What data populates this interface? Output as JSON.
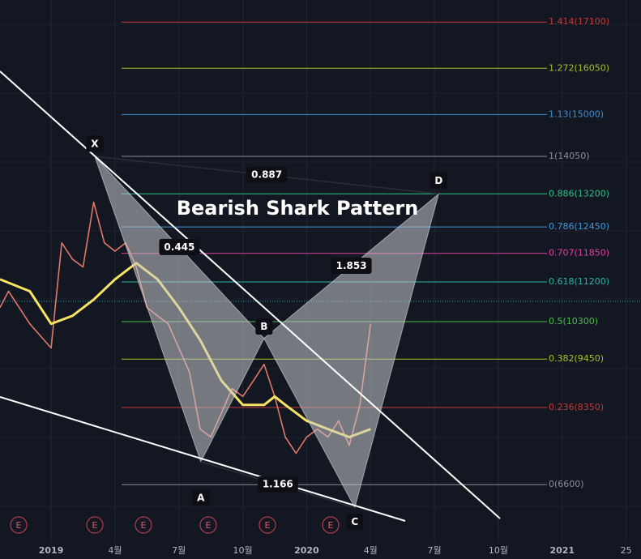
{
  "chart_data": {
    "type": "harmonic",
    "title": "Bearish Shark Pattern",
    "xlim": [
      -2.4,
      27.7
    ],
    "ylim": [
      5280,
      17600
    ],
    "xticks": [
      {
        "value": 0,
        "label": "2019"
      },
      {
        "value": 3,
        "label": "4월"
      },
      {
        "value": 6,
        "label": "7월"
      },
      {
        "value": 9,
        "label": "10월"
      },
      {
        "value": 12,
        "label": "2020"
      },
      {
        "value": 15,
        "label": "4월"
      },
      {
        "value": 18,
        "label": "7월"
      },
      {
        "value": 21,
        "label": "10월"
      },
      {
        "value": 24,
        "label": "2021"
      },
      {
        "value": 27,
        "label": "25"
      }
    ],
    "fib_levels": [
      {
        "label": "1.414(17100)",
        "value": 17100,
        "color": "#c23b3b"
      },
      {
        "label": "1.272(16050)",
        "value": 16050,
        "color": "#a3c12e"
      },
      {
        "label": "1.13(15000)",
        "value": 15000,
        "color": "#3b8fd6"
      },
      {
        "label": "1(14050)",
        "value": 14050,
        "color": "#8a8d96"
      },
      {
        "label": "0.886(13200)",
        "value": 13200,
        "color": "#2fbf86"
      },
      {
        "label": "0.786(12450)",
        "value": 12450,
        "color": "#3d9ad8"
      },
      {
        "label": "0.707(11850)",
        "value": 11850,
        "color": "#d9439f"
      },
      {
        "label": "0.618(11200)",
        "value": 11200,
        "color": "#2bb3a3"
      },
      {
        "label": "0.5(10300)",
        "value": 10300,
        "color": "#4cbb50"
      },
      {
        "label": "0.382(9450)",
        "value": 9450,
        "color": "#a3c12e"
      },
      {
        "label": "0.236(8350)",
        "value": 8350,
        "color": "#c23b3b"
      },
      {
        "label": "0(6600)",
        "value": 6600,
        "color": "#8a8d96"
      }
    ],
    "points": [
      {
        "name": "X",
        "x": 2.05,
        "value": 14050
      },
      {
        "name": "A",
        "x": 7.03,
        "value": 7120
      },
      {
        "name": "B",
        "x": 10.0,
        "value": 9920
      },
      {
        "name": "C",
        "x": 14.26,
        "value": 6080
      },
      {
        "name": "D",
        "x": 18.2,
        "value": 13200
      }
    ],
    "ratios": {
      "XD": "0.887",
      "XB": "0.445",
      "BD": "1.853",
      "AC": "1.166"
    },
    "last_price": 10760,
    "price": {
      "color": "#e0786a",
      "x": [
        -2.4,
        -2,
        -1,
        0,
        0.5,
        1,
        1.5,
        2,
        2.5,
        3,
        3.5,
        4,
        4.5,
        5,
        5.5,
        6,
        6.5,
        7,
        7.5,
        8,
        8.5,
        9,
        9.5,
        10,
        10.5,
        11,
        11.5,
        12,
        12.5,
        13,
        13.5,
        14,
        14.5,
        14.8,
        15
      ],
      "values": [
        10620,
        10990,
        10250,
        9700,
        12090,
        11720,
        11540,
        13010,
        12090,
        11900,
        12090,
        11540,
        10620,
        10430,
        10250,
        9700,
        9150,
        7860,
        7680,
        8230,
        8780,
        8600,
        8960,
        9330,
        8600,
        7680,
        7310,
        7680,
        7860,
        7680,
        8050,
        7490,
        8410,
        9520,
        10250
      ]
    },
    "moving_average": {
      "color": "#f7e463",
      "x": [
        -2.4,
        -1,
        0,
        1,
        2,
        3,
        4,
        5,
        6,
        7,
        8,
        9,
        10,
        10.5,
        11,
        12,
        13,
        14,
        15
      ],
      "values": [
        11260,
        10990,
        10250,
        10430,
        10800,
        11260,
        11630,
        11260,
        10620,
        9880,
        8960,
        8410,
        8410,
        8600,
        8410,
        8050,
        7860,
        7680,
        7860
      ]
    },
    "events": [
      "E",
      "E",
      "E",
      "E",
      "E",
      "E"
    ]
  }
}
